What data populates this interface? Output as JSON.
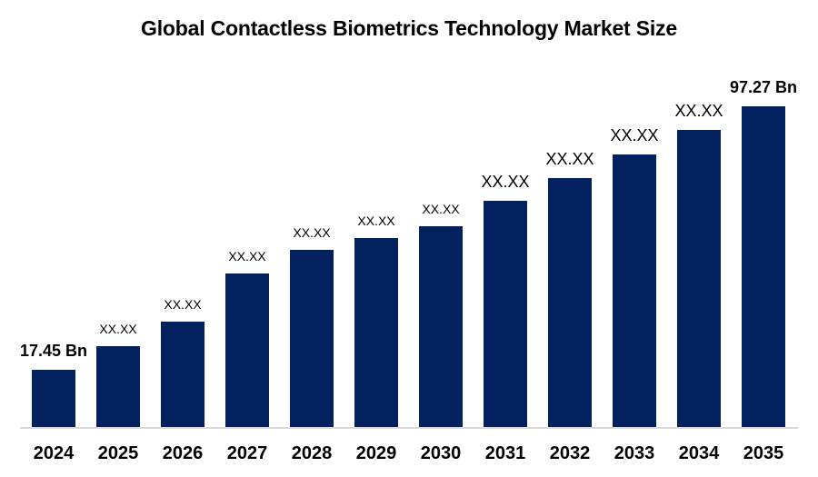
{
  "colors": {
    "bar": "#03205F",
    "axis_line": "#D9D9D9",
    "text": "#000000",
    "background": "#FFFFFF"
  },
  "chart_data": {
    "type": "bar",
    "title": "Global Contactless Biometrics Technology Market Size",
    "categories": [
      "2024",
      "2025",
      "2026",
      "2027",
      "2028",
      "2029",
      "2030",
      "2031",
      "2032",
      "2033",
      "2034",
      "2035"
    ],
    "values": [
      17.45,
      24.5,
      32.0,
      46.5,
      53.7,
      57.3,
      60.9,
      68.6,
      75.5,
      82.6,
      90.1,
      97.27
    ],
    "values_note": "only 2024 and 2035 values are printed; intermediate bars are masked as XX.XX and their values are estimated from bar heights",
    "bar_labels": [
      "17.45 Bn",
      "XX.XX",
      "XX.XX",
      "XX.XX",
      "XX.XX",
      "XX.XX",
      "XX.XX",
      "XX.XX",
      "XX.XX",
      "XX.XX",
      "XX.XX",
      "97.27 Bn"
    ],
    "label_styles": [
      "bold",
      "small",
      "small",
      "small",
      "small",
      "small",
      "small",
      "large",
      "large",
      "large",
      "large",
      "bold"
    ],
    "unit": "Bn",
    "xlabel": "",
    "ylabel": "",
    "ylim": [
      0,
      100
    ],
    "grid": false,
    "legend": false
  }
}
